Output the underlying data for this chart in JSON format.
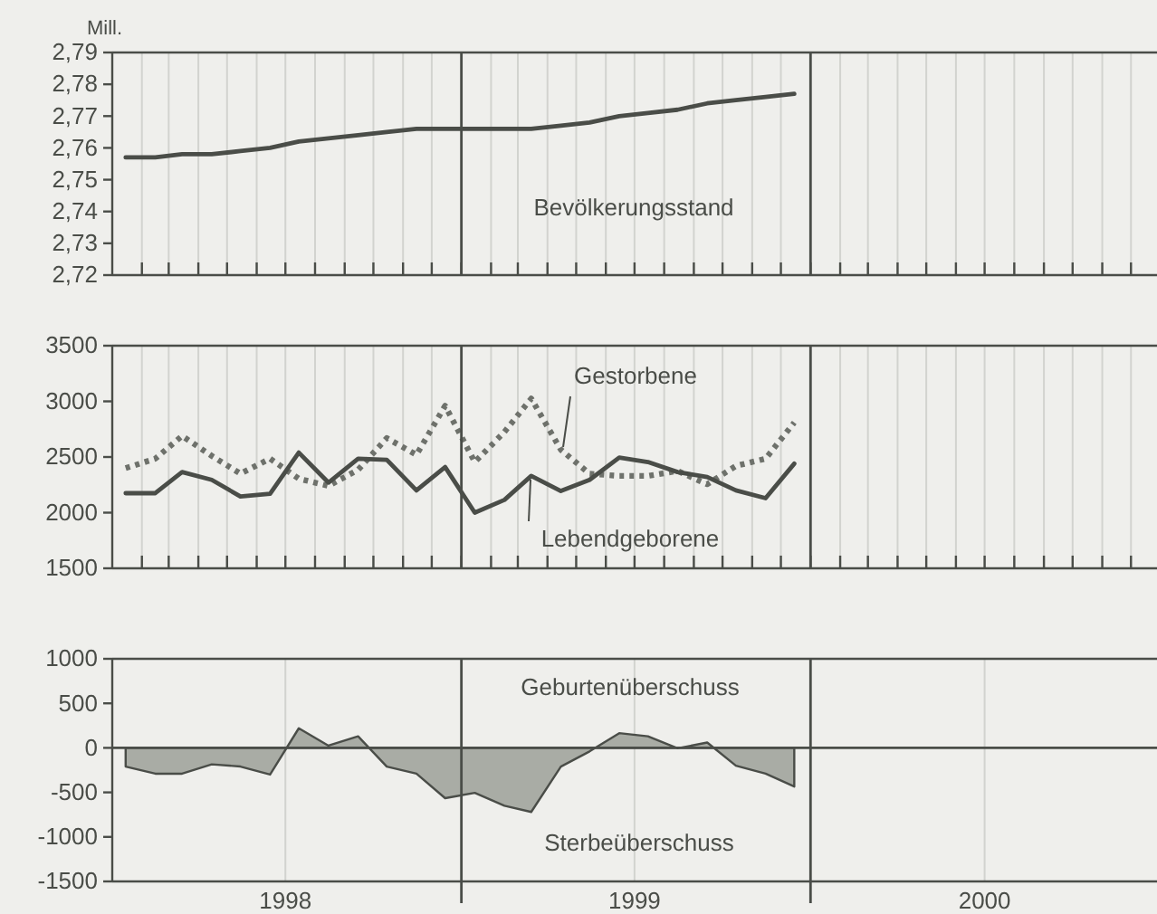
{
  "chart_data": [
    {
      "type": "line",
      "ylabel": "Mill.",
      "x": [
        "1998-01-15",
        "1998-02-15",
        "1998-03-15",
        "1998-04-15",
        "1998-05-15",
        "1998-06-15",
        "1998-07-15",
        "1998-08-15",
        "1998-09-15",
        "1998-10-15",
        "1998-11-15",
        "1998-12-15",
        "1999-01-15",
        "1999-02-15",
        "1999-03-15",
        "1999-04-15",
        "1999-05-15",
        "1999-06-15",
        "1999-07-15",
        "1999-08-15",
        "1999-09-15",
        "1999-10-15",
        "1999-11-15",
        "1999-12-15"
      ],
      "series": [
        {
          "name": "Bevölkerungsstand",
          "color": "#4a4d48",
          "values": [
            2.757,
            2.757,
            2.758,
            2.758,
            2.759,
            2.76,
            2.762,
            2.763,
            2.764,
            2.765,
            2.766,
            2.766,
            2.766,
            2.766,
            2.766,
            2.767,
            2.768,
            2.77,
            2.771,
            2.772,
            2.774,
            2.775,
            2.776,
            2.777
          ]
        }
      ],
      "xlim": [
        "1998-01-01",
        "2001-01-01"
      ],
      "xticks": [
        {
          "value": "1998-02-01",
          "label": null
        },
        {
          "value": "1998-03-01",
          "label": null
        },
        {
          "value": "1998-04-01",
          "label": null
        },
        {
          "value": "1998-05-01",
          "label": null
        },
        {
          "value": "1998-06-01",
          "label": null
        },
        {
          "value": "1998-07-01",
          "label": null
        },
        {
          "value": "1998-08-01",
          "label": null
        },
        {
          "value": "1998-09-01",
          "label": null
        },
        {
          "value": "1998-10-01",
          "label": null
        },
        {
          "value": "1998-11-01",
          "label": null
        },
        {
          "value": "1998-12-01",
          "label": null
        },
        {
          "value": "1999-01-01",
          "label": null
        },
        {
          "value": "1999-02-01",
          "label": null
        },
        {
          "value": "1999-03-01",
          "label": null
        },
        {
          "value": "1999-04-01",
          "label": null
        },
        {
          "value": "1999-05-01",
          "label": null
        },
        {
          "value": "1999-06-01",
          "label": null
        },
        {
          "value": "1999-07-01",
          "label": null
        },
        {
          "value": "1999-08-01",
          "label": null
        },
        {
          "value": "1999-09-01",
          "label": null
        },
        {
          "value": "1999-10-01",
          "label": null
        },
        {
          "value": "1999-11-01",
          "label": null
        },
        {
          "value": "1999-12-01",
          "label": null
        },
        {
          "value": "2000-01-01",
          "label": null
        },
        {
          "value": "2000-02-01",
          "label": null
        },
        {
          "value": "2000-03-01",
          "label": null
        },
        {
          "value": "2000-04-01",
          "label": null
        },
        {
          "value": "2000-05-01",
          "label": null
        },
        {
          "value": "2000-06-01",
          "label": null
        },
        {
          "value": "2000-07-01",
          "label": null
        },
        {
          "value": "2000-08-01",
          "label": null
        },
        {
          "value": "2000-09-01",
          "label": null
        },
        {
          "value": "2000-10-01",
          "label": null
        },
        {
          "value": "2000-11-01",
          "label": null
        },
        {
          "value": "2000-12-01",
          "label": null
        }
      ],
      "ylim": [
        2.72,
        2.79
      ],
      "yticks": [
        {
          "value": 2.72,
          "label": "2,72"
        },
        {
          "value": 2.73,
          "label": "2,73"
        },
        {
          "value": 2.74,
          "label": "2,74"
        },
        {
          "value": 2.75,
          "label": "2,75"
        },
        {
          "value": 2.76,
          "label": "2,76"
        },
        {
          "value": 2.77,
          "label": "2,77"
        },
        {
          "value": 2.78,
          "label": "2,78"
        },
        {
          "value": 2.79,
          "label": "2,79"
        }
      ],
      "ref_lines": [
        {
          "axis": "x",
          "value": "1999-01-01",
          "color": "#4a4d48"
        },
        {
          "axis": "x",
          "value": "2000-01-01",
          "color": "#4a4d48"
        }
      ],
      "grid": "x",
      "tick_labels": "y"
    },
    {
      "type": "line",
      "x": [
        "1998-01-15",
        "1998-02-15",
        "1998-03-15",
        "1998-04-15",
        "1998-05-15",
        "1998-06-15",
        "1998-07-15",
        "1998-08-15",
        "1998-09-15",
        "1998-10-15",
        "1998-11-15",
        "1998-12-15",
        "1999-01-15",
        "1999-02-15",
        "1999-03-15",
        "1999-04-15",
        "1999-05-15",
        "1999-06-15",
        "1999-07-15",
        "1999-08-15",
        "1999-09-15",
        "1999-10-15",
        "1999-11-15",
        "1999-12-15"
      ],
      "series": [
        {
          "name": "Gestorbene",
          "color": "#6e716b",
          "line_style": "dotted",
          "values": [
            2400,
            2485,
            2690,
            2510,
            2350,
            2485,
            2305,
            2240,
            2385,
            2670,
            2520,
            2960,
            2455,
            2725,
            3025,
            2565,
            2350,
            2330,
            2330,
            2375,
            2255,
            2420,
            2485,
            2810
          ]
        },
        {
          "name": "Lebendgeborene",
          "color": "#4a4d48",
          "line_style": "solid",
          "values": [
            2175,
            2175,
            2365,
            2295,
            2145,
            2170,
            2540,
            2270,
            2485,
            2475,
            2200,
            2410,
            2000,
            2115,
            2330,
            2195,
            2295,
            2495,
            2455,
            2365,
            2320,
            2200,
            2130,
            2440
          ]
        }
      ],
      "xlim": [
        "1998-01-01",
        "2001-01-01"
      ],
      "xticks": [
        {
          "value": "1998-02-01",
          "label": null
        },
        {
          "value": "1998-03-01",
          "label": null
        },
        {
          "value": "1998-04-01",
          "label": null
        },
        {
          "value": "1998-05-01",
          "label": null
        },
        {
          "value": "1998-06-01",
          "label": null
        },
        {
          "value": "1998-07-01",
          "label": null
        },
        {
          "value": "1998-08-01",
          "label": null
        },
        {
          "value": "1998-09-01",
          "label": null
        },
        {
          "value": "1998-10-01",
          "label": null
        },
        {
          "value": "1998-11-01",
          "label": null
        },
        {
          "value": "1998-12-01",
          "label": null
        },
        {
          "value": "1999-01-01",
          "label": null
        },
        {
          "value": "1999-02-01",
          "label": null
        },
        {
          "value": "1999-03-01",
          "label": null
        },
        {
          "value": "1999-04-01",
          "label": null
        },
        {
          "value": "1999-05-01",
          "label": null
        },
        {
          "value": "1999-06-01",
          "label": null
        },
        {
          "value": "1999-07-01",
          "label": null
        },
        {
          "value": "1999-08-01",
          "label": null
        },
        {
          "value": "1999-09-01",
          "label": null
        },
        {
          "value": "1999-10-01",
          "label": null
        },
        {
          "value": "1999-11-01",
          "label": null
        },
        {
          "value": "1999-12-01",
          "label": null
        },
        {
          "value": "2000-01-01",
          "label": null
        },
        {
          "value": "2000-02-01",
          "label": null
        },
        {
          "value": "2000-03-01",
          "label": null
        },
        {
          "value": "2000-04-01",
          "label": null
        },
        {
          "value": "2000-05-01",
          "label": null
        },
        {
          "value": "2000-06-01",
          "label": null
        },
        {
          "value": "2000-07-01",
          "label": null
        },
        {
          "value": "2000-08-01",
          "label": null
        },
        {
          "value": "2000-09-01",
          "label": null
        },
        {
          "value": "2000-10-01",
          "label": null
        },
        {
          "value": "2000-11-01",
          "label": null
        },
        {
          "value": "2000-12-01",
          "label": null
        }
      ],
      "ylim": [
        1500,
        3500
      ],
      "yticks": [
        1500,
        2000,
        2500,
        3000,
        3500
      ],
      "ref_lines": [
        {
          "axis": "x",
          "value": "1999-01-01",
          "color": "#4a4d48"
        },
        {
          "axis": "x",
          "value": "2000-01-01",
          "color": "#4a4d48"
        }
      ],
      "grid": "x",
      "tick_labels": "y"
    },
    {
      "type": "area",
      "annotations": [
        "Geburtenüberschuss",
        "Sterbeüberschuss"
      ],
      "x": [
        "1998-01-15",
        "1998-02-15",
        "1998-03-15",
        "1998-04-15",
        "1998-05-15",
        "1998-06-15",
        "1998-07-15",
        "1998-08-15",
        "1998-09-15",
        "1998-10-15",
        "1998-11-15",
        "1998-12-15",
        "1999-01-15",
        "1999-02-15",
        "1999-03-15",
        "1999-04-15",
        "1999-05-15",
        "1999-06-15",
        "1999-07-15",
        "1999-08-15",
        "1999-09-15",
        "1999-10-15",
        "1999-11-15",
        "1999-12-15"
      ],
      "series": [
        {
          "color": "#a9aca5",
          "values": [
            -210,
            -290,
            -290,
            -185,
            -210,
            -300,
            220,
            25,
            130,
            -210,
            -290,
            -565,
            -505,
            -650,
            -720,
            -210,
            -40,
            165,
            130,
            -5,
            60,
            -200,
            -290,
            -435
          ]
        }
      ],
      "xlim": [
        "1998-01-01",
        "2001-01-01"
      ],
      "xticks": [
        {
          "value": "1998-07-01",
          "label": "1998"
        },
        {
          "value": "1999-07-01",
          "label": "1999"
        },
        {
          "value": "2000-07-01",
          "label": "2000"
        }
      ],
      "ylim": [
        -1500,
        1000
      ],
      "yticks": [
        -1500,
        -1000,
        -500,
        0,
        500,
        1000
      ],
      "ref_lines": [
        {
          "axis": "x",
          "value": "1999-01-01",
          "color": "#4a4d48"
        },
        {
          "axis": "x",
          "value": "2000-01-01",
          "color": "#4a4d48"
        },
        {
          "axis": "y",
          "value": 0,
          "color": "#4a4d48"
        }
      ],
      "grid": "x"
    }
  ]
}
